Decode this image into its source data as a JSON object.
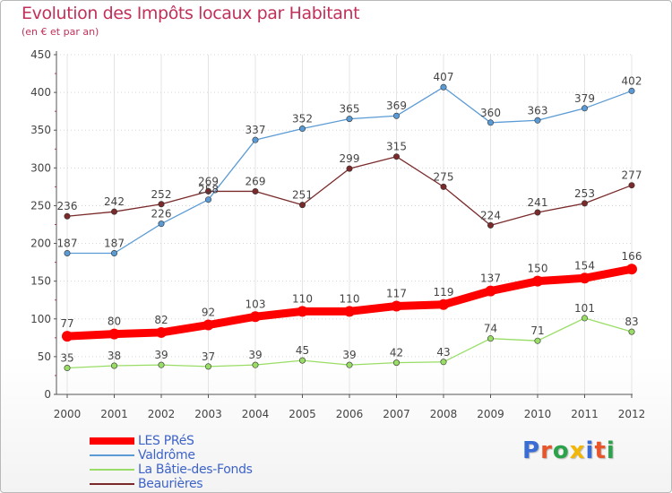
{
  "title": "Evolution des Impôts locaux par Habitant",
  "subtitle": "(en € et par an)",
  "logo": {
    "letters": [
      "P",
      "r",
      "o",
      "x",
      "i",
      "t",
      "i"
    ],
    "colors": [
      "#3a6cd6",
      "#e8552a",
      "#2ca24a",
      "#f2b705",
      "#3a6cd6",
      "#e8552a",
      "#2ca24a"
    ]
  },
  "chart_data": {
    "type": "line",
    "x": [
      "2000",
      "2001",
      "2002",
      "2003",
      "2004",
      "2005",
      "2006",
      "2007",
      "2008",
      "2009",
      "2010",
      "2011",
      "2012"
    ],
    "ylim": [
      0,
      450
    ],
    "yticks": [
      "0",
      "50",
      "100",
      "150",
      "200",
      "250",
      "300",
      "350",
      "400",
      "450"
    ],
    "grid": true,
    "legend_position": "bottom-left",
    "series": [
      {
        "name": "LES PRéS",
        "color": "#ff0000",
        "values": [
          77,
          80,
          82,
          92,
          103,
          110,
          110,
          117,
          119,
          137,
          150,
          154,
          166
        ]
      },
      {
        "name": "Valdrôme",
        "color": "#5b9bd5",
        "values": [
          187,
          187,
          226,
          258,
          337,
          352,
          365,
          369,
          407,
          360,
          363,
          379,
          402
        ]
      },
      {
        "name": "La Bâtie-des-Fonds",
        "color": "#99dd66",
        "values": [
          35,
          38,
          39,
          37,
          39,
          45,
          39,
          42,
          43,
          74,
          71,
          101,
          83
        ]
      },
      {
        "name": "Beaurières",
        "color": "#7a2a2a",
        "values": [
          236,
          242,
          252,
          269,
          269,
          251,
          299,
          315,
          275,
          224,
          241,
          253,
          277
        ]
      }
    ]
  }
}
